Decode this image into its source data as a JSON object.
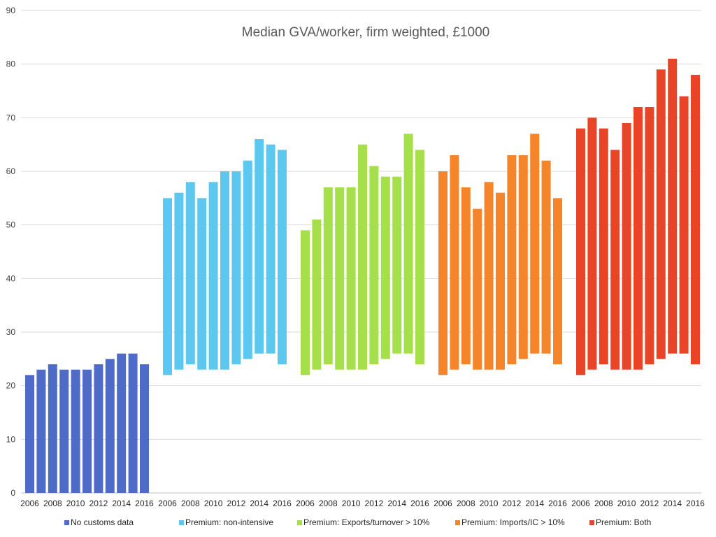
{
  "chart_data": {
    "type": "bar",
    "title": "Median GVA/worker, firm weighted, £1000",
    "xlabel": "",
    "ylabel": "",
    "ylim": [
      0,
      90
    ],
    "yticks": [
      0,
      10,
      20,
      30,
      40,
      50,
      60,
      70,
      80,
      90
    ],
    "grid": true,
    "legend_position": "bottom",
    "categories": [
      "2006",
      "2007",
      "2008",
      "2009",
      "2010",
      "2011",
      "2012",
      "2013",
      "2014",
      "2015",
      "2016"
    ],
    "x_tick_labels": [
      "2006",
      "2008",
      "2010",
      "2012",
      "2014",
      "2016"
    ],
    "series": [
      {
        "name": "No customs data",
        "color": "#4f6bc8",
        "base": [
          0,
          0,
          0,
          0,
          0,
          0,
          0,
          0,
          0,
          0,
          0
        ],
        "values": [
          22,
          23,
          24,
          23,
          23,
          23,
          24,
          25,
          26,
          26,
          24
        ]
      },
      {
        "name": "Premium: non-intensive",
        "color": "#5dc8ef",
        "base": [
          22,
          23,
          24,
          23,
          23,
          23,
          24,
          25,
          26,
          26,
          24
        ],
        "values": [
          55,
          56,
          58,
          55,
          58,
          60,
          60,
          62,
          66,
          65,
          64
        ]
      },
      {
        "name": "Premium: Exports/turnover > 10%",
        "color": "#a5e04b",
        "base": [
          22,
          23,
          24,
          23,
          23,
          23,
          24,
          25,
          26,
          26,
          24
        ],
        "values": [
          49,
          51,
          57,
          57,
          57,
          65,
          61,
          59,
          59,
          67,
          64
        ]
      },
      {
        "name": "Premium: Imports/IC > 10%",
        "color": "#f5852a",
        "base": [
          22,
          23,
          24,
          23,
          23,
          23,
          24,
          25,
          26,
          26,
          24
        ],
        "values": [
          60,
          63,
          57,
          53,
          58,
          56,
          63,
          63,
          67,
          62,
          55
        ]
      },
      {
        "name": "Premium: Both",
        "color": "#e94427",
        "base": [
          22,
          23,
          24,
          23,
          23,
          23,
          24,
          25,
          26,
          26,
          24
        ],
        "values": [
          68,
          70,
          68,
          64,
          69,
          72,
          72,
          79,
          81,
          74,
          78
        ]
      }
    ]
  }
}
